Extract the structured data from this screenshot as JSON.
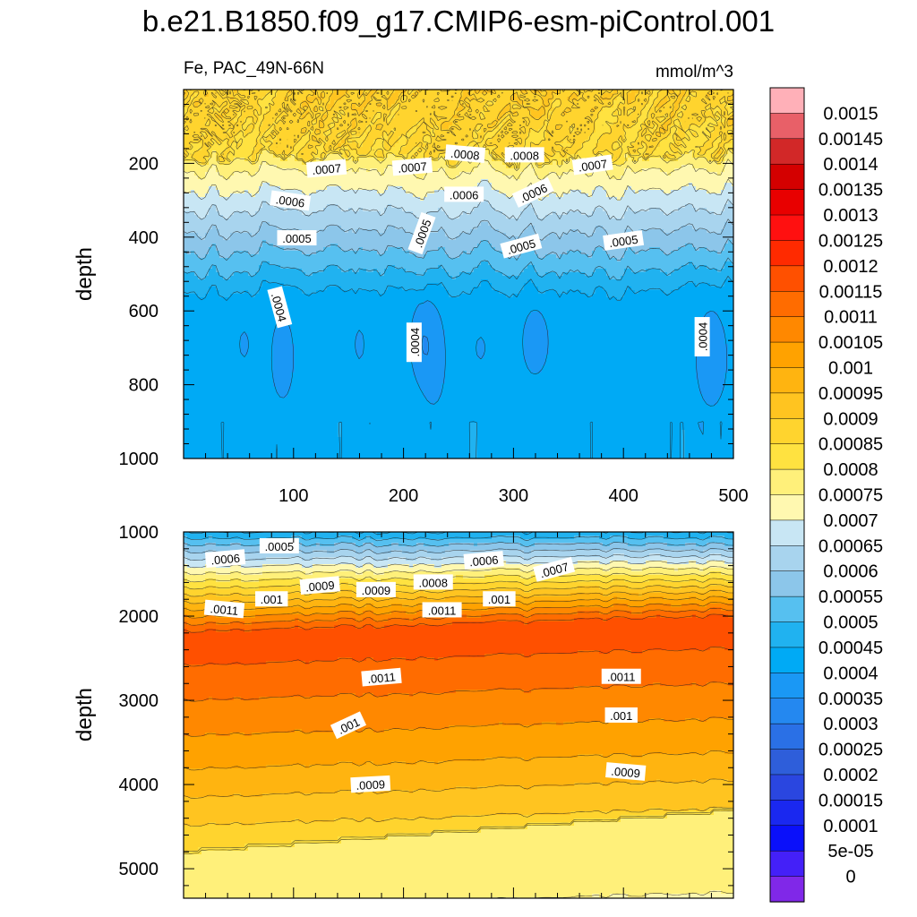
{
  "chart_data": {
    "type": "heatmap",
    "title": "b.e21.B1850.f09_g17.CMIP6-esm-piControl.001",
    "left_string": "Fe, PAC_49N-66N",
    "right_string": "mmol/m^3",
    "ylabel": "depth",
    "x_ticks": [
      100,
      200,
      300,
      400,
      500
    ],
    "x_range": [
      0,
      500
    ],
    "panels": [
      {
        "name": "upper",
        "ylim": [
          1000,
          0
        ],
        "y_ticks": [
          200,
          400,
          600,
          800,
          1000
        ],
        "contour_labels": [
          {
            "text": ".0007",
            "x": 130,
            "y": 215,
            "rot": -5
          },
          {
            "text": ".0007",
            "x": 208,
            "y": 210,
            "rot": -5
          },
          {
            "text": ".0008",
            "x": 256,
            "y": 175,
            "rot": 5
          },
          {
            "text": ".0008",
            "x": 310,
            "y": 178,
            "rot": 0
          },
          {
            "text": ".0007",
            "x": 372,
            "y": 205,
            "rot": -8
          },
          {
            "text": ".0006",
            "x": 97,
            "y": 302,
            "rot": 8
          },
          {
            "text": ".0006",
            "x": 255,
            "y": 285,
            "rot": 0
          },
          {
            "text": ".0006",
            "x": 318,
            "y": 280,
            "rot": -25
          },
          {
            "text": ".0005",
            "x": 103,
            "y": 403,
            "rot": 0
          },
          {
            "text": ".0005",
            "x": 217,
            "y": 390,
            "rot": -70
          },
          {
            "text": ".0005",
            "x": 307,
            "y": 425,
            "rot": -15
          },
          {
            "text": ".0005",
            "x": 400,
            "y": 410,
            "rot": -8
          },
          {
            "text": ".0004",
            "x": 87,
            "y": 590,
            "rot": 75
          },
          {
            "text": ".0004",
            "x": 210,
            "y": 685,
            "rot": -90
          },
          {
            "text": ".0004",
            "x": 472,
            "y": 670,
            "rot": -90
          }
        ]
      },
      {
        "name": "lower",
        "ylim": [
          5350,
          1000
        ],
        "y_ticks": [
          1000,
          2000,
          3000,
          4000,
          5000
        ],
        "contour_labels": [
          {
            "text": ".0005",
            "x": 87,
            "y": 1170,
            "rot": 0
          },
          {
            "text": ".0006",
            "x": 38,
            "y": 1320,
            "rot": -5
          },
          {
            "text": ".0006",
            "x": 273,
            "y": 1340,
            "rot": -5
          },
          {
            "text": ".0007",
            "x": 337,
            "y": 1450,
            "rot": -15
          },
          {
            "text": ".0009",
            "x": 124,
            "y": 1640,
            "rot": -5
          },
          {
            "text": ".0009",
            "x": 175,
            "y": 1690,
            "rot": 0
          },
          {
            "text": ".0008",
            "x": 227,
            "y": 1600,
            "rot": 0
          },
          {
            "text": ".001",
            "x": 80,
            "y": 1800,
            "rot": 0
          },
          {
            "text": ".001",
            "x": 287,
            "y": 1800,
            "rot": 0
          },
          {
            "text": ".0011",
            "x": 37,
            "y": 1920,
            "rot": 5
          },
          {
            "text": ".0011",
            "x": 235,
            "y": 1930,
            "rot": 0
          },
          {
            "text": ".0011",
            "x": 180,
            "y": 2730,
            "rot": -5
          },
          {
            "text": ".0011",
            "x": 398,
            "y": 2720,
            "rot": 0
          },
          {
            "text": ".001",
            "x": 150,
            "y": 3300,
            "rot": -25
          },
          {
            "text": ".001",
            "x": 398,
            "y": 3180,
            "rot": 0
          },
          {
            "text": ".0009",
            "x": 170,
            "y": 4000,
            "rot": -3
          },
          {
            "text": ".0009",
            "x": 402,
            "y": 3850,
            "rot": 5
          }
        ]
      }
    ],
    "colorbar": {
      "labels": [
        "0.0015",
        "0.00145",
        "0.0014",
        "0.00135",
        "0.0013",
        "0.00125",
        "0.0012",
        "0.00115",
        "0.0011",
        "0.00105",
        "0.001",
        "0.00095",
        "0.0009",
        "0.00085",
        "0.0008",
        "0.00075",
        "0.0007",
        "0.00065",
        "0.0006",
        "0.00055",
        "0.0005",
        "0.00045",
        "0.0004",
        "0.00035",
        "0.0003",
        "0.00025",
        "0.0002",
        "0.00015",
        "0.0001",
        "5e-05",
        "0"
      ],
      "colors": [
        "#FFB0B8",
        "#E86068",
        "#D22828",
        "#D40000",
        "#E80000",
        "#FF1010",
        "#FF2A00",
        "#FF5000",
        "#FF6C00",
        "#FF8800",
        "#FFA200",
        "#FFB410",
        "#FFC420",
        "#FFD42E",
        "#FFE240",
        "#FFF07A",
        "#FFF8B0",
        "#C8E6F4",
        "#A8D4EE",
        "#8CC6EA",
        "#56C0F0",
        "#20B2F0",
        "#00AAF5",
        "#1A98F5",
        "#2488F0",
        "#2A70E6",
        "#2E5EDA",
        "#2A46E0",
        "#1A28F0",
        "#0A10FA",
        "#4420F8",
        "#8028E8"
      ]
    }
  }
}
